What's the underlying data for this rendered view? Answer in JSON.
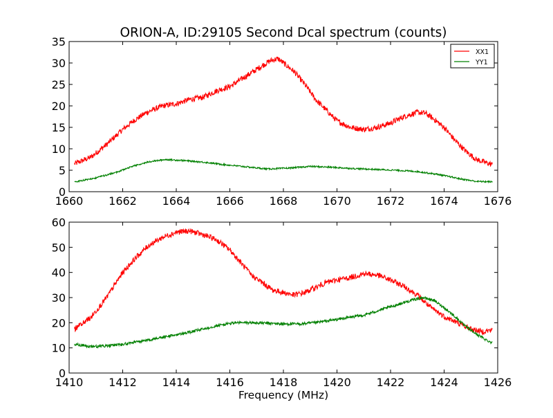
{
  "title": "ORION-A, ID:29105 Second Dcal spectrum (counts)",
  "colors": {
    "XX1": "#ff0000",
    "YY1": "#008000"
  },
  "chart_data": [
    {
      "type": "line",
      "title": "ORION-A, ID:29105 Second Dcal spectrum (counts)",
      "xlabel": "",
      "ylabel": "",
      "xlim": [
        1660,
        1676
      ],
      "ylim": [
        0,
        35
      ],
      "xticks": [
        "1660",
        "1662",
        "1664",
        "1666",
        "1668",
        "1670",
        "1672",
        "1674",
        "1676"
      ],
      "yticks": [
        "0",
        "5",
        "10",
        "15",
        "20",
        "25",
        "30",
        "35"
      ],
      "legend": {
        "placement": "top-right",
        "entries": [
          "XX1",
          "YY1"
        ]
      },
      "grid": false,
      "series": [
        {
          "name": "XX1",
          "color": "#ff0000",
          "x": [
            1660.2,
            1660.8,
            1661.4,
            1662.0,
            1662.4,
            1662.9,
            1663.5,
            1664.0,
            1664.5,
            1665.0,
            1665.5,
            1666.0,
            1666.5,
            1667.0,
            1667.5,
            1667.8,
            1668.0,
            1668.4,
            1668.8,
            1669.2,
            1669.6,
            1670.0,
            1670.5,
            1671.0,
            1671.5,
            1672.0,
            1672.5,
            1673.0,
            1673.3,
            1673.6,
            1674.0,
            1674.4,
            1674.8,
            1675.2,
            1675.8
          ],
          "y": [
            6.5,
            8.0,
            11.0,
            14.5,
            16.5,
            18.5,
            20.0,
            20.5,
            21.5,
            22.0,
            23.5,
            24.5,
            26.5,
            28.5,
            30.5,
            31.0,
            30.0,
            28.0,
            25.0,
            21.5,
            19.0,
            16.5,
            15.0,
            14.5,
            15.0,
            16.0,
            17.5,
            18.5,
            18.3,
            17.0,
            15.0,
            12.0,
            9.5,
            7.5,
            6.3
          ]
        },
        {
          "name": "YY1",
          "color": "#008000",
          "x": [
            1660.2,
            1661.0,
            1661.8,
            1662.4,
            1663.0,
            1663.6,
            1664.2,
            1665.0,
            1665.8,
            1666.6,
            1667.4,
            1668.2,
            1669.0,
            1669.8,
            1670.6,
            1671.4,
            1672.2,
            1673.0,
            1673.8,
            1674.6,
            1675.2,
            1675.8
          ],
          "y": [
            2.3,
            3.2,
            4.6,
            6.0,
            7.0,
            7.5,
            7.3,
            6.9,
            6.3,
            5.8,
            5.3,
            5.5,
            5.9,
            5.7,
            5.4,
            5.2,
            5.0,
            4.7,
            4.0,
            3.0,
            2.4,
            2.3
          ]
        }
      ]
    },
    {
      "type": "line",
      "title": "",
      "xlabel": "Frequency (MHz)",
      "ylabel": "",
      "xlim": [
        1410,
        1426
      ],
      "ylim": [
        0,
        60
      ],
      "xticks": [
        "1410",
        "1412",
        "1414",
        "1416",
        "1418",
        "1420",
        "1422",
        "1424",
        "1426"
      ],
      "yticks": [
        "0",
        "10",
        "20",
        "30",
        "40",
        "50",
        "60"
      ],
      "grid": false,
      "series": [
        {
          "color": "#ff0000",
          "x": [
            1410.2,
            1410.8,
            1411.4,
            1412.0,
            1412.5,
            1413.0,
            1413.5,
            1414.0,
            1414.5,
            1415.0,
            1415.5,
            1416.0,
            1416.4,
            1416.8,
            1417.2,
            1417.6,
            1418.0,
            1418.4,
            1418.8,
            1419.2,
            1419.6,
            1420.0,
            1420.5,
            1421.0,
            1421.5,
            1422.0,
            1422.5,
            1423.0,
            1423.5,
            1424.0,
            1424.5,
            1425.0,
            1425.4,
            1425.8
          ],
          "y": [
            17.5,
            22.0,
            30.0,
            40.0,
            46.0,
            51.0,
            54.0,
            56.0,
            56.5,
            55.0,
            53.0,
            49.0,
            44.0,
            39.0,
            36.0,
            33.0,
            32.0,
            31.0,
            32.0,
            34.0,
            36.0,
            37.0,
            38.0,
            39.5,
            39.0,
            37.0,
            34.5,
            31.0,
            26.0,
            22.5,
            20.0,
            17.5,
            16.5,
            17.0
          ]
        },
        {
          "color": "#008000",
          "x": [
            1410.2,
            1410.8,
            1411.4,
            1412.0,
            1412.6,
            1413.2,
            1413.8,
            1414.4,
            1415.0,
            1415.6,
            1416.2,
            1416.8,
            1417.4,
            1418.0,
            1418.6,
            1419.2,
            1419.8,
            1420.4,
            1421.0,
            1421.6,
            1422.2,
            1422.8,
            1423.2,
            1423.6,
            1424.0,
            1424.4,
            1424.8,
            1425.2,
            1425.6,
            1425.8
          ],
          "y": [
            11.5,
            10.5,
            10.8,
            11.5,
            12.5,
            13.5,
            14.8,
            16.0,
            17.5,
            19.0,
            20.0,
            20.0,
            19.8,
            19.5,
            19.5,
            20.0,
            21.0,
            22.0,
            23.0,
            25.0,
            27.0,
            29.0,
            30.0,
            29.0,
            26.0,
            22.5,
            18.5,
            15.5,
            13.0,
            12.0
          ]
        }
      ]
    }
  ]
}
